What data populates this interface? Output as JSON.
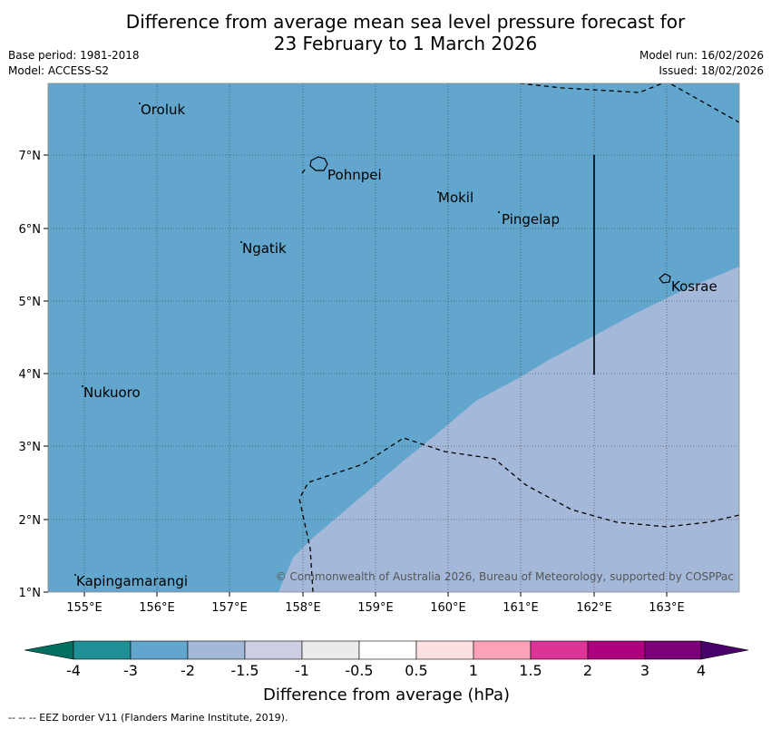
{
  "title": {
    "line1": "Difference from average mean sea level pressure forecast for",
    "line2": "23 February to 1 March 2026"
  },
  "meta": {
    "base_period": "Base period: 1981-2018",
    "model": "Model: ACCESS-S2",
    "model_run": "Model run: 16/02/2026",
    "issued": "Issued: 18/02/2026"
  },
  "map": {
    "lon_range": [
      154.5,
      164.0
    ],
    "lat_range": [
      1.0,
      8.0
    ],
    "lon_ticks": [
      "155°E",
      "156°E",
      "157°E",
      "158°E",
      "159°E",
      "160°E",
      "161°E",
      "162°E",
      "163°E"
    ],
    "lat_ticks": [
      "1°N",
      "2°N",
      "3°N",
      "4°N",
      "5°N",
      "6°N",
      "7°N"
    ],
    "places": {
      "oroluk": "Oroluk",
      "pohnpei": "Pohnpei",
      "mokil": "Mokil",
      "pingelap": "Pingelap",
      "ngatik": "Ngatik",
      "kosrae": "Kosrae",
      "nukuoro": "Nukuoro",
      "kapingamarangi": "Kapingamarangi"
    },
    "credit": "© Commonwealth of Australia 2026, Bureau of Meteorology, supported by COSPPac",
    "fill_colors": {
      "-3_to_-2": "#63a6cd",
      "-2_to_-1.5": "#a4b9da"
    }
  },
  "colorbar": {
    "ticks": [
      "-4",
      "-3",
      "-2",
      "-1.5",
      "-1",
      "-0.5",
      "0.5",
      "1",
      "1.5",
      "2",
      "3",
      "4"
    ],
    "colors": [
      "#006f60",
      "#1e8f94",
      "#63a6cd",
      "#a4b9da",
      "#cdcde4",
      "#ebebeb",
      "#ffffff",
      "#fde0e1",
      "#faa2b8",
      "#dd3497",
      "#ae017e",
      "#7a0177",
      "#49006a"
    ],
    "label": "Difference from average (hPa)"
  },
  "footer": "--  --  -- EEZ border V11 (Flanders Marine Institute, 2019)."
}
